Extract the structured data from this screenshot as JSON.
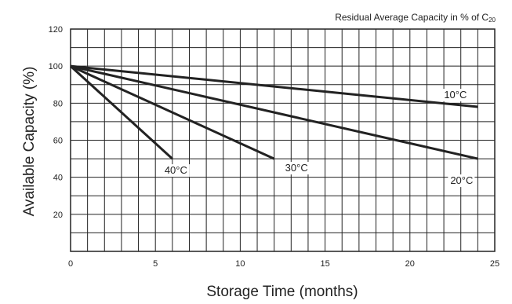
{
  "chart_data": {
    "type": "line",
    "title": "Residual Average Capacity in % of C",
    "title_subscript": "20",
    "xlabel": "Storage Time (months)",
    "ylabel": "Available Capacity (%)",
    "xlim": [
      0,
      25
    ],
    "ylim": [
      0,
      120
    ],
    "x_ticks": [
      0,
      5,
      10,
      15,
      20,
      25
    ],
    "y_ticks": [
      20,
      40,
      60,
      80,
      100,
      120
    ],
    "x_grid_step": 1,
    "y_grid_step": 10,
    "grid": true,
    "line_color": "#222222",
    "series": [
      {
        "name": "10°C",
        "x": [
          0,
          24
        ],
        "y": [
          100,
          78
        ]
      },
      {
        "name": "20°C",
        "x": [
          0,
          24
        ],
        "y": [
          100,
          50
        ]
      },
      {
        "name": "30°C",
        "x": [
          0,
          12
        ],
        "y": [
          100,
          50
        ]
      },
      {
        "name": "40°C",
        "x": [
          0,
          6
        ],
        "y": [
          100,
          50
        ]
      }
    ]
  }
}
